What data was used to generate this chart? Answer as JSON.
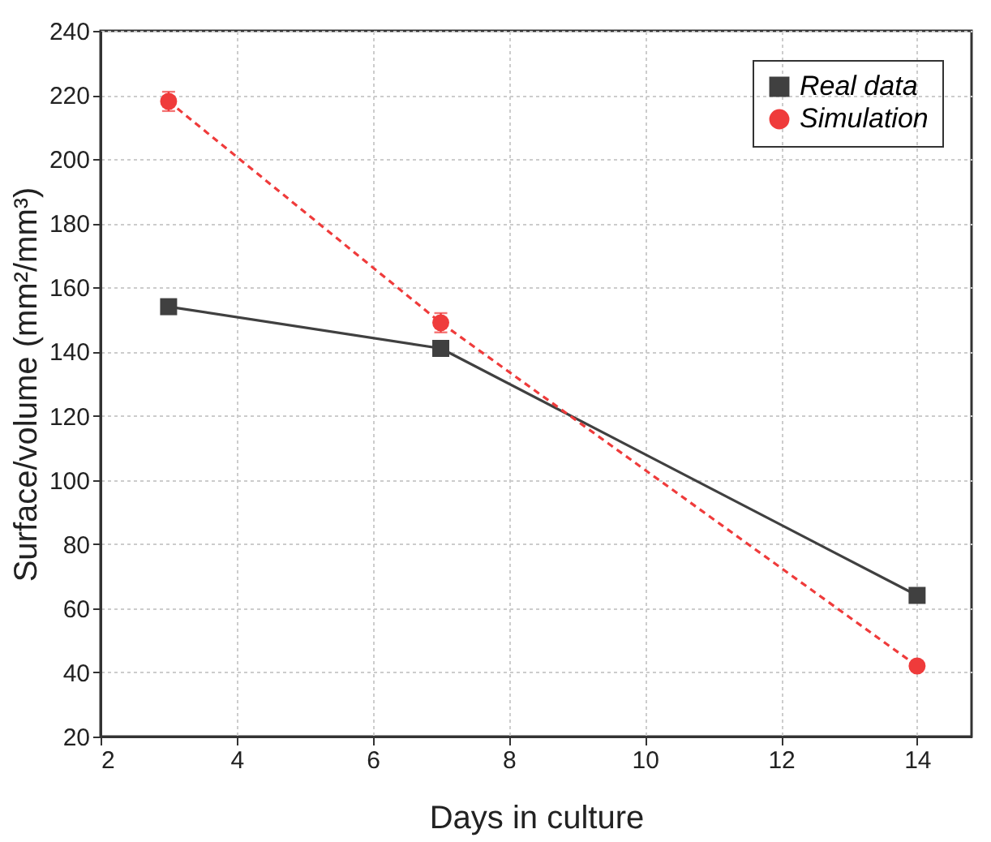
{
  "chart_data": {
    "type": "line",
    "xlabel": "Days in culture",
    "ylabel": "Surface/volume (mm²/mm³)",
    "x": [
      3,
      7,
      14
    ],
    "series": [
      {
        "name": "Real data",
        "color": "#404040",
        "values": [
          154,
          141,
          64
        ],
        "marker": "square",
        "line_style": "solid"
      },
      {
        "name": "Simulation",
        "color": "#ef3b3b",
        "values": [
          218,
          149,
          42
        ],
        "marker": "circle",
        "line_style": "dashed",
        "errors": [
          3,
          3,
          null
        ]
      }
    ],
    "xlim": [
      2,
      14.8
    ],
    "xticks": [
      2,
      4,
      6,
      8,
      10,
      12,
      14
    ],
    "ylim": [
      20,
      240
    ],
    "yticks": [
      20,
      40,
      60,
      80,
      100,
      120,
      140,
      160,
      180,
      200,
      220,
      240
    ],
    "grid": true,
    "legend": "top right"
  }
}
